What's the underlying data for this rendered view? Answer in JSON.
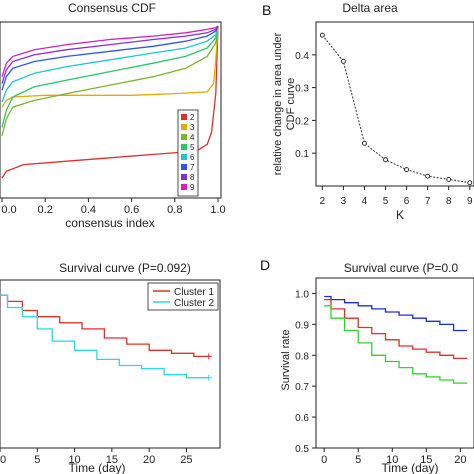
{
  "panels": {
    "A": {
      "title": "Consensus CDF"
    },
    "B": {
      "letter": "B",
      "title": "Delta area"
    },
    "C": {
      "title": "Survival curve (P=0.092)"
    },
    "D": {
      "letter": "D",
      "title": "Survival curve (P=0.0"
    }
  },
  "chart_data": [
    {
      "id": "consensus-cdf",
      "type": "line",
      "title": "Consensus CDF",
      "xlabel": "consensus index",
      "ylabel": "",
      "xlim": [
        0,
        1
      ],
      "ylim": [
        0,
        1
      ],
      "x_ticks": [
        "0.0",
        "0.2",
        "0.4",
        "0.6",
        "0.8",
        "1.0"
      ],
      "legend": {
        "position": "bottom-right",
        "labels": [
          "2",
          "3",
          "4",
          "5",
          "6",
          "7",
          "8",
          "9"
        ]
      },
      "series": [
        {
          "name": "2",
          "color": "#e0302a",
          "x": [
            0,
            0.02,
            0.1,
            0.3,
            0.5,
            0.7,
            0.9,
            0.95,
            0.97,
            0.99,
            1.0
          ],
          "y": [
            0.1,
            0.14,
            0.18,
            0.2,
            0.22,
            0.24,
            0.26,
            0.3,
            0.37,
            0.6,
            1.0
          ]
        },
        {
          "name": "3",
          "color": "#e8a800",
          "x": [
            0,
            0.02,
            0.05,
            0.2,
            0.4,
            0.6,
            0.8,
            0.95,
            0.98,
            0.99,
            1.0
          ],
          "y": [
            0.52,
            0.56,
            0.58,
            0.59,
            0.59,
            0.59,
            0.6,
            0.61,
            0.66,
            0.8,
            1.0
          ]
        },
        {
          "name": "4",
          "color": "#7ab52b",
          "x": [
            0,
            0.02,
            0.05,
            0.15,
            0.3,
            0.5,
            0.7,
            0.85,
            0.95,
            0.99,
            1.0
          ],
          "y": [
            0.35,
            0.45,
            0.52,
            0.56,
            0.6,
            0.65,
            0.7,
            0.75,
            0.82,
            0.9,
            1.0
          ]
        },
        {
          "name": "5",
          "color": "#2dc36b",
          "x": [
            0,
            0.02,
            0.05,
            0.15,
            0.3,
            0.5,
            0.7,
            0.85,
            0.95,
            0.99,
            1.0
          ],
          "y": [
            0.4,
            0.5,
            0.58,
            0.64,
            0.68,
            0.73,
            0.78,
            0.82,
            0.87,
            0.93,
            1.0
          ]
        },
        {
          "name": "6",
          "color": "#1ec4d8",
          "x": [
            0,
            0.02,
            0.05,
            0.15,
            0.3,
            0.5,
            0.7,
            0.85,
            0.95,
            0.99,
            1.0
          ],
          "y": [
            0.55,
            0.62,
            0.67,
            0.72,
            0.76,
            0.8,
            0.84,
            0.87,
            0.91,
            0.95,
            1.0
          ]
        },
        {
          "name": "7",
          "color": "#2f57e8",
          "x": [
            0,
            0.02,
            0.05,
            0.15,
            0.3,
            0.5,
            0.7,
            0.85,
            0.95,
            0.99,
            1.0
          ],
          "y": [
            0.62,
            0.7,
            0.75,
            0.79,
            0.82,
            0.85,
            0.88,
            0.91,
            0.94,
            0.97,
            1.0
          ]
        },
        {
          "name": "8",
          "color": "#8a2be2",
          "x": [
            0,
            0.02,
            0.05,
            0.15,
            0.3,
            0.5,
            0.7,
            0.85,
            0.95,
            0.99,
            1.0
          ],
          "y": [
            0.66,
            0.74,
            0.79,
            0.83,
            0.86,
            0.89,
            0.92,
            0.94,
            0.96,
            0.98,
            1.0
          ]
        },
        {
          "name": "9",
          "color": "#d21fbf",
          "x": [
            0,
            0.02,
            0.05,
            0.15,
            0.3,
            0.5,
            0.7,
            0.85,
            0.95,
            0.99,
            1.0
          ],
          "y": [
            0.7,
            0.78,
            0.82,
            0.86,
            0.89,
            0.92,
            0.94,
            0.96,
            0.98,
            0.99,
            1.0
          ]
        }
      ]
    },
    {
      "id": "delta-area",
      "type": "line",
      "title": "Delta area",
      "xlabel": "K",
      "ylabel": "relative change in area under CDF curve",
      "xlim": [
        1.7,
        9.2
      ],
      "ylim": [
        0,
        0.5
      ],
      "x_ticks": [
        "2",
        "3",
        "4",
        "5",
        "6",
        "7",
        "8",
        "9"
      ],
      "y_ticks": [
        "0.1",
        "0.2",
        "0.3",
        "0.4"
      ],
      "series": [
        {
          "color": "#222222",
          "x": [
            2,
            3,
            4,
            5,
            6,
            7,
            8,
            9
          ],
          "y": [
            0.46,
            0.38,
            0.13,
            0.08,
            0.05,
            0.03,
            0.02,
            0.01
          ]
        }
      ]
    },
    {
      "id": "survival-c",
      "type": "line",
      "title": "Survival curve (P=0.092)",
      "xlabel": "Time (day)",
      "ylabel": "",
      "xlim": [
        0,
        29.5
      ],
      "ylim": [
        0.5,
        1.05
      ],
      "x_ticks": [
        "0",
        "5",
        "10",
        "15",
        "20",
        "25"
      ],
      "legend": {
        "position": "top-right",
        "labels": [
          "Cluster 1",
          "Cluster 2"
        ]
      },
      "series": [
        {
          "name": "Cluster 1",
          "color": "#e0302a",
          "x": [
            0,
            1,
            3,
            5,
            8,
            11,
            14,
            17,
            20,
            23,
            26,
            28
          ],
          "y": [
            1.0,
            0.98,
            0.95,
            0.93,
            0.91,
            0.89,
            0.86,
            0.84,
            0.82,
            0.81,
            0.8,
            0.8
          ]
        },
        {
          "name": "Cluster 2",
          "color": "#2fd6e6",
          "x": [
            0,
            1,
            3,
            5,
            7,
            10,
            13,
            16,
            19,
            22,
            25,
            28
          ],
          "y": [
            1.0,
            0.96,
            0.93,
            0.89,
            0.85,
            0.82,
            0.79,
            0.77,
            0.76,
            0.74,
            0.73,
            0.73
          ]
        }
      ]
    },
    {
      "id": "survival-d",
      "type": "line",
      "title": "Survival curve (P=0.0",
      "xlabel": "Time (day)",
      "ylabel": "Survival rate",
      "xlim": [
        -1.2,
        22
      ],
      "ylim": [
        0.5,
        1.05
      ],
      "x_ticks": [
        "0",
        "5",
        "10",
        "15",
        "20"
      ],
      "y_ticks": [
        "0.5",
        "0.6",
        "0.7",
        "0.8",
        "0.9",
        "1.0"
      ],
      "series": [
        {
          "color": "#1f2ad8",
          "x": [
            0,
            1,
            3,
            5,
            7,
            9,
            11,
            13,
            15,
            17,
            19,
            21
          ],
          "y": [
            0.99,
            0.98,
            0.97,
            0.96,
            0.95,
            0.94,
            0.93,
            0.92,
            0.91,
            0.9,
            0.88,
            0.88
          ]
        },
        {
          "color": "#e0302a",
          "x": [
            0,
            1,
            3,
            5,
            7,
            9,
            11,
            13,
            15,
            17,
            19,
            21
          ],
          "y": [
            0.98,
            0.95,
            0.92,
            0.89,
            0.87,
            0.85,
            0.83,
            0.82,
            0.81,
            0.8,
            0.79,
            0.79
          ]
        },
        {
          "color": "#33d12e",
          "x": [
            0,
            1,
            3,
            5,
            7,
            9,
            11,
            13,
            15,
            17,
            19,
            21
          ],
          "y": [
            0.96,
            0.92,
            0.88,
            0.84,
            0.8,
            0.78,
            0.76,
            0.74,
            0.73,
            0.72,
            0.71,
            0.71
          ]
        }
      ]
    }
  ]
}
